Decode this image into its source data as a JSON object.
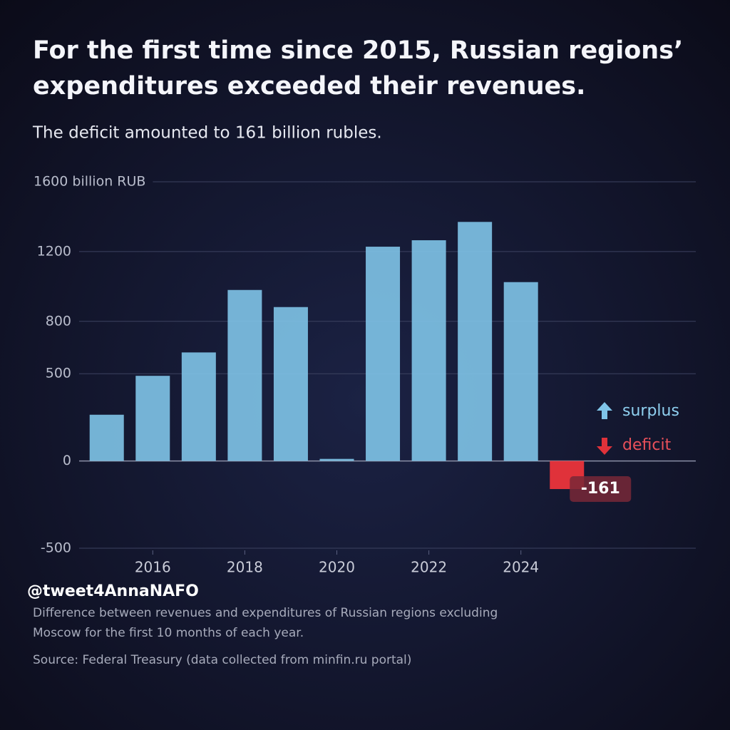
{
  "chart_data": {
    "type": "bar",
    "title": [
      "For the first time since 2015, Russian regions’",
      "expenditures exceeded their revenues."
    ],
    "subtitle": "The deficit amounted to 161 billion rubles.",
    "x": [
      2015,
      2016,
      2017,
      2018,
      2019,
      2020,
      2021,
      2022,
      2023,
      2024,
      2025
    ],
    "values": [
      265,
      488,
      622,
      980,
      882,
      12,
      1228,
      1265,
      1370,
      1025,
      -161
    ],
    "xlim": [
      2014.4,
      2027.8
    ],
    "xticks": [
      2016,
      2018,
      2020,
      2022,
      2024
    ],
    "ylim": [
      -500,
      1600
    ],
    "yticks": [
      -500,
      0,
      500,
      800,
      1200,
      {
        "value": 1600,
        "label": "1600 billion RUB"
      }
    ],
    "grid": true,
    "legend": [
      {
        "name": "surplus",
        "color": "#7fc4e8"
      },
      {
        "name": "deficit",
        "color": "#e0323a"
      }
    ],
    "legend_position": "right",
    "watermark": "@tweet4AnnaNAFO",
    "note": [
      "Difference between revenues and expenditures of Russian regions excluding",
      "Moscow for the first 10 months of each year."
    ],
    "source": "Source: Federal Treasury (data collected from minfin.ru portal)"
  }
}
